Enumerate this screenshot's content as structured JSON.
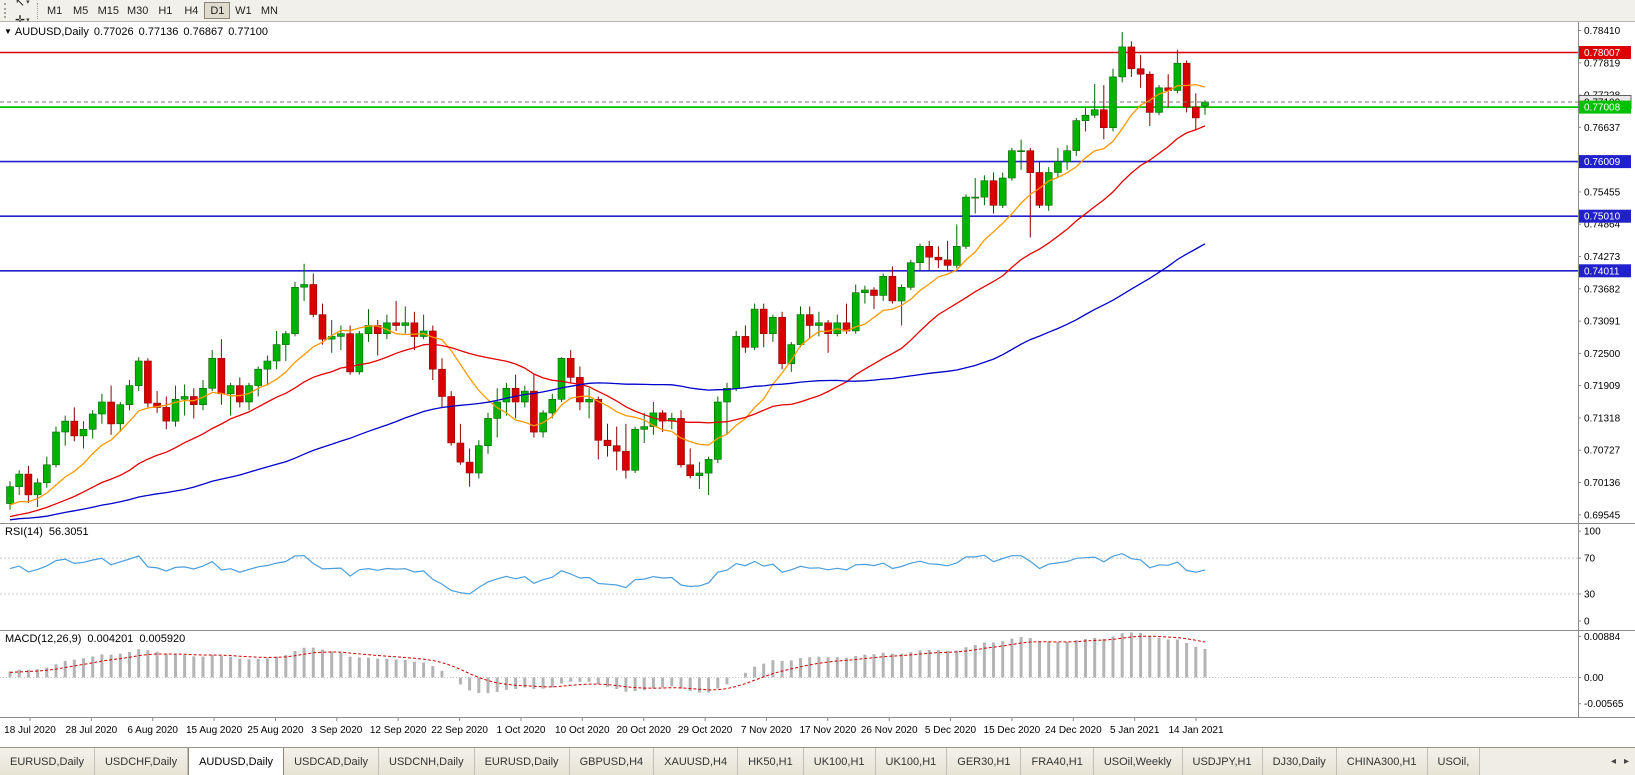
{
  "toolbar": {
    "tools": [
      {
        "name": "cursor-tool",
        "glyph": "↖"
      },
      {
        "name": "crosshair-tool",
        "glyph": "✛"
      }
    ],
    "caret_glyph": "▾",
    "timeframes": [
      "M1",
      "M5",
      "M15",
      "M30",
      "H1",
      "H4",
      "D1",
      "W1",
      "MN"
    ],
    "selected_timeframe": "D1"
  },
  "chart": {
    "symbol": "AUDUSD,Daily",
    "menu_icon": "▼",
    "open": "0.77026",
    "high": "0.77136",
    "low": "0.76867",
    "close": "0.77100"
  },
  "price_axis": {
    "ticks": [
      "0.78410",
      "0.77819",
      "0.77228",
      "0.76637",
      "0.76046",
      "0.75455",
      "0.74864",
      "0.74273",
      "0.73682",
      "0.73091",
      "0.72500",
      "0.71909",
      "0.71318",
      "0.70727",
      "0.70136",
      "0.69545"
    ],
    "current_price": {
      "value": "0.77100",
      "line_color": "#777777",
      "box_bg": "#e8e8e8",
      "box_border": "#606060",
      "text_color": "#000000"
    },
    "level_lines": [
      {
        "value": "0.78007",
        "color": "#dd0000",
        "width": 1.4
      },
      {
        "value": "0.77008",
        "color": "#00c000",
        "width": 1.8
      },
      {
        "value": "0.76009",
        "color": "#2020cc",
        "width": 1.6
      },
      {
        "value": "0.75010",
        "color": "#2020cc",
        "width": 1.6
      },
      {
        "value": "0.74011",
        "color": "#2020cc",
        "width": 1.6
      }
    ]
  },
  "time_axis": {
    "labels": [
      "18 Jul 2020",
      "28 Jul 2020",
      "6 Aug 2020",
      "15 Aug 2020",
      "25 Aug 2020",
      "3 Sep 2020",
      "12 Sep 2020",
      "22 Sep 2020",
      "1 Oct 2020",
      "10 Oct 2020",
      "20 Oct 2020",
      "29 Oct 2020",
      "7 Nov 2020",
      "17 Nov 2020",
      "26 Nov 2020",
      "5 Dec 2020",
      "15 Dec 2020",
      "24 Dec 2020",
      "5 Jan 2021",
      "14 Jan 2021"
    ]
  },
  "rsi": {
    "label": "RSI(14)",
    "value": "56.3051",
    "period": 14,
    "levels": [
      70,
      30
    ],
    "axis": [
      "100",
      "70",
      "30",
      "0"
    ],
    "view_min": -10,
    "view_max": 109
  },
  "macd": {
    "label": "MACD(12,26,9)",
    "value_main": "0.004201",
    "value_signal": "0.005920",
    "axis": [
      "0.00884",
      "0.00",
      "-0.00565"
    ],
    "view_min": -0.0085,
    "view_max": 0.0102
  },
  "tabs": {
    "items": [
      "EURUSD,Daily",
      "USDCHF,Daily",
      "AUDUSD,Daily",
      "USDCAD,Daily",
      "USDCNH,Daily",
      "EURUSD,Daily",
      "GBPUSD,H4",
      "XAUUSD,H4",
      "HK50,H1",
      "UK100,H1",
      "UK100,H1",
      "GER30,H1",
      "FRA40,H1",
      "USOil,Weekly",
      "USDJPY,H1",
      "DJ30,Daily",
      "CHINA300,H1",
      "USOil,"
    ],
    "active_index": 2,
    "scroll_left_glyph": "◂",
    "scroll_right_glyph": "▸"
  },
  "colors": {
    "background": "#ffffff",
    "bull": "#00b200",
    "bull_stroke": "#006600",
    "bear": "#d90000",
    "bear_stroke": "#8b0000",
    "rsi_line": "#4a9ede",
    "macd_hist": "#b4b4b4",
    "macd_signal": "#d00000",
    "axis_text": "#000000",
    "separator": "#8c8c8c"
  },
  "chart_data": {
    "type": "candlestick",
    "symbol": "AUDUSD",
    "timeframe": "Daily",
    "title": "AUDUSD,Daily 0.77026 0.77136 0.76867 0.77100",
    "x_range": [
      "18 Jul 2020",
      "19 Jan 2021"
    ],
    "price_view": [
      0.69395,
      0.78565
    ],
    "history_closes": [
      0.69,
      0.6875,
      0.691,
      0.6945,
      0.6965,
      0.693,
      0.6895,
      0.692,
      0.695,
      0.6975,
      0.7,
      0.6985,
      0.694,
      0.6905,
      0.693,
      0.6955,
      0.694,
      0.691,
      0.689,
      0.692,
      0.694,
      0.696,
      0.693,
      0.69,
      0.6925,
      0.6945,
      0.6965,
      0.6985,
      0.696,
      0.6935,
      0.695,
      0.697,
      0.699,
      0.696,
      0.694,
      0.696,
      0.698,
      0.6995,
      0.697,
      0.6955
    ],
    "candles": [
      [
        0.6975,
        0.7016,
        0.6964,
        0.7006
      ],
      [
        0.7006,
        0.7036,
        0.6991,
        0.7029
      ],
      [
        0.7029,
        0.7044,
        0.6976,
        0.6991
      ],
      [
        0.6991,
        0.7021,
        0.6969,
        0.7013
      ],
      [
        0.7013,
        0.7061,
        0.7004,
        0.7046
      ],
      [
        0.7046,
        0.7116,
        0.7041,
        0.7106
      ],
      [
        0.7106,
        0.7136,
        0.7081,
        0.7126
      ],
      [
        0.7126,
        0.7151,
        0.7089,
        0.7099
      ],
      [
        0.7099,
        0.7126,
        0.7076,
        0.7111
      ],
      [
        0.7111,
        0.7146,
        0.7094,
        0.7139
      ],
      [
        0.7139,
        0.7176,
        0.7121,
        0.7161
      ],
      [
        0.7161,
        0.7191,
        0.7101,
        0.7121
      ],
      [
        0.7121,
        0.7161,
        0.7106,
        0.7156
      ],
      [
        0.7156,
        0.7201,
        0.7146,
        0.7191
      ],
      [
        0.7191,
        0.7243,
        0.7181,
        0.7236
      ],
      [
        0.7236,
        0.7241,
        0.7151,
        0.7159
      ],
      [
        0.7159,
        0.7181,
        0.7141,
        0.7151
      ],
      [
        0.7151,
        0.7171,
        0.7111,
        0.7126
      ],
      [
        0.7126,
        0.7191,
        0.7116,
        0.7166
      ],
      [
        0.7166,
        0.7193,
        0.7136,
        0.7171
      ],
      [
        0.7171,
        0.7186,
        0.7131,
        0.7156
      ],
      [
        0.7156,
        0.7201,
        0.7146,
        0.7186
      ],
      [
        0.7186,
        0.7256,
        0.7181,
        0.7241
      ],
      [
        0.7241,
        0.7276,
        0.7156,
        0.7176
      ],
      [
        0.7176,
        0.7196,
        0.7136,
        0.7191
      ],
      [
        0.7191,
        0.7206,
        0.7151,
        0.7161
      ],
      [
        0.7161,
        0.7196,
        0.7146,
        0.7191
      ],
      [
        0.7191,
        0.7226,
        0.7171,
        0.7221
      ],
      [
        0.7221,
        0.7246,
        0.7191,
        0.7236
      ],
      [
        0.7236,
        0.7291,
        0.7221,
        0.7266
      ],
      [
        0.7266,
        0.7291,
        0.7236,
        0.7286
      ],
      [
        0.7286,
        0.7381,
        0.7281,
        0.7371
      ],
      [
        0.7371,
        0.7414,
        0.7346,
        0.7376
      ],
      [
        0.7376,
        0.7396,
        0.7316,
        0.7321
      ],
      [
        0.7321,
        0.7341,
        0.7266,
        0.7276
      ],
      [
        0.7276,
        0.7311,
        0.7251,
        0.7281
      ],
      [
        0.7281,
        0.7301,
        0.7256,
        0.7286
      ],
      [
        0.7286,
        0.7301,
        0.7211,
        0.7216
      ],
      [
        0.7216,
        0.7291,
        0.7211,
        0.7286
      ],
      [
        0.7286,
        0.7331,
        0.7271,
        0.7301
      ],
      [
        0.7301,
        0.7311,
        0.7246,
        0.7286
      ],
      [
        0.7286,
        0.7321,
        0.7276,
        0.7306
      ],
      [
        0.7306,
        0.7346,
        0.7291,
        0.7301
      ],
      [
        0.7301,
        0.7336,
        0.7286,
        0.7306
      ],
      [
        0.7306,
        0.7326,
        0.7256,
        0.7281
      ],
      [
        0.7281,
        0.7321,
        0.7276,
        0.7291
      ],
      [
        0.7291,
        0.7301,
        0.7201,
        0.7221
      ],
      [
        0.7221,
        0.7241,
        0.7151,
        0.7171
      ],
      [
        0.7171,
        0.7181,
        0.7081,
        0.7086
      ],
      [
        0.7086,
        0.7121,
        0.7046,
        0.7051
      ],
      [
        0.7051,
        0.7076,
        0.7006,
        0.7031
      ],
      [
        0.7031,
        0.7091,
        0.7021,
        0.7081
      ],
      [
        0.7081,
        0.7141,
        0.7066,
        0.7131
      ],
      [
        0.7131,
        0.7186,
        0.7096,
        0.7161
      ],
      [
        0.7161,
        0.7196,
        0.7136,
        0.7186
      ],
      [
        0.7186,
        0.7211,
        0.7131,
        0.7161
      ],
      [
        0.7161,
        0.7191,
        0.7151,
        0.7181
      ],
      [
        0.7181,
        0.7211,
        0.7096,
        0.7106
      ],
      [
        0.7106,
        0.7146,
        0.7096,
        0.7141
      ],
      [
        0.7141,
        0.7176,
        0.7131,
        0.7166
      ],
      [
        0.7166,
        0.7243,
        0.7161,
        0.7241
      ],
      [
        0.7241,
        0.7256,
        0.7196,
        0.7206
      ],
      [
        0.7206,
        0.7226,
        0.7146,
        0.7161
      ],
      [
        0.7161,
        0.7186,
        0.7131,
        0.7166
      ],
      [
        0.7166,
        0.7171,
        0.7056,
        0.7091
      ],
      [
        0.7091,
        0.7121,
        0.7061,
        0.7081
      ],
      [
        0.7081,
        0.7116,
        0.7036,
        0.7071
      ],
      [
        0.7071,
        0.7121,
        0.7021,
        0.7036
      ],
      [
        0.7036,
        0.7116,
        0.7031,
        0.7111
      ],
      [
        0.7111,
        0.7141,
        0.7086,
        0.7116
      ],
      [
        0.7116,
        0.7161,
        0.7101,
        0.7141
      ],
      [
        0.7141,
        0.7146,
        0.7106,
        0.7126
      ],
      [
        0.7126,
        0.7141,
        0.7111,
        0.7131
      ],
      [
        0.7131,
        0.7146,
        0.7041,
        0.7046
      ],
      [
        0.7046,
        0.7076,
        0.7021,
        0.7026
      ],
      [
        0.7026,
        0.7051,
        0.7002,
        0.7031
      ],
      [
        0.7031,
        0.7061,
        0.6991,
        0.7056
      ],
      [
        0.7056,
        0.7171,
        0.7049,
        0.7161
      ],
      [
        0.7161,
        0.7196,
        0.7101,
        0.7186
      ],
      [
        0.7186,
        0.7291,
        0.7181,
        0.7281
      ],
      [
        0.7281,
        0.7301,
        0.7251,
        0.7261
      ],
      [
        0.7261,
        0.7341,
        0.7256,
        0.7331
      ],
      [
        0.7331,
        0.7341,
        0.7261,
        0.7286
      ],
      [
        0.7286,
        0.7321,
        0.7271,
        0.7316
      ],
      [
        0.7316,
        0.7326,
        0.7221,
        0.7231
      ],
      [
        0.7231,
        0.7271,
        0.7216,
        0.7266
      ],
      [
        0.7266,
        0.7336,
        0.7261,
        0.7321
      ],
      [
        0.7321,
        0.7336,
        0.7276,
        0.7301
      ],
      [
        0.7301,
        0.7326,
        0.7281,
        0.7306
      ],
      [
        0.7306,
        0.7311,
        0.7251,
        0.7286
      ],
      [
        0.7286,
        0.7321,
        0.7281,
        0.7306
      ],
      [
        0.7306,
        0.7341,
        0.7286,
        0.7291
      ],
      [
        0.7291,
        0.7376,
        0.7286,
        0.7361
      ],
      [
        0.7361,
        0.7374,
        0.7341,
        0.7366
      ],
      [
        0.7366,
        0.7371,
        0.7331,
        0.7356
      ],
      [
        0.7356,
        0.7396,
        0.7346,
        0.7391
      ],
      [
        0.7391,
        0.7409,
        0.7341,
        0.7346
      ],
      [
        0.7346,
        0.7376,
        0.7301,
        0.7371
      ],
      [
        0.7371,
        0.7421,
        0.7366,
        0.7416
      ],
      [
        0.7416,
        0.7451,
        0.7401,
        0.7446
      ],
      [
        0.7446,
        0.7456,
        0.7401,
        0.7426
      ],
      [
        0.7426,
        0.7446,
        0.7406,
        0.7421
      ],
      [
        0.7421,
        0.7456,
        0.7401,
        0.7411
      ],
      [
        0.7411,
        0.7486,
        0.7406,
        0.7446
      ],
      [
        0.7446,
        0.7541,
        0.7441,
        0.7536
      ],
      [
        0.7536,
        0.7571,
        0.7506,
        0.7536
      ],
      [
        0.7536,
        0.7576,
        0.7521,
        0.7566
      ],
      [
        0.7566,
        0.7581,
        0.7506,
        0.7521
      ],
      [
        0.7521,
        0.7581,
        0.7516,
        0.7571
      ],
      [
        0.7571,
        0.7626,
        0.7566,
        0.7621
      ],
      [
        0.7621,
        0.7641,
        0.7586,
        0.7621
      ],
      [
        0.7621,
        0.7626,
        0.7462,
        0.7581
      ],
      [
        0.7581,
        0.7601,
        0.7516,
        0.7521
      ],
      [
        0.7521,
        0.7591,
        0.7511,
        0.7581
      ],
      [
        0.7581,
        0.7626,
        0.7571,
        0.7601
      ],
      [
        0.7601,
        0.7631,
        0.7586,
        0.7621
      ],
      [
        0.7621,
        0.7681,
        0.7611,
        0.7676
      ],
      [
        0.7676,
        0.7701,
        0.7656,
        0.7686
      ],
      [
        0.7686,
        0.7743,
        0.7681,
        0.7696
      ],
      [
        0.7696,
        0.7741,
        0.7642,
        0.7663
      ],
      [
        0.7663,
        0.7771,
        0.7656,
        0.7756
      ],
      [
        0.7756,
        0.7838,
        0.7746,
        0.7811
      ],
      [
        0.7811,
        0.7821,
        0.7756,
        0.7771
      ],
      [
        0.7771,
        0.7796,
        0.7736,
        0.7761
      ],
      [
        0.7761,
        0.7766,
        0.7666,
        0.7691
      ],
      [
        0.7691,
        0.7741,
        0.7686,
        0.7736
      ],
      [
        0.7736,
        0.7761,
        0.7701,
        0.7731
      ],
      [
        0.7731,
        0.7806,
        0.7726,
        0.7781
      ],
      [
        0.7781,
        0.7786,
        0.7691,
        0.7701
      ],
      [
        0.7701,
        0.7726,
        0.7659,
        0.7681
      ],
      [
        0.77026,
        0.77136,
        0.76867,
        0.771
      ]
    ],
    "overlays": [
      {
        "name": "ma-fast",
        "period": 10,
        "color": "#ff9900"
      },
      {
        "name": "ma-mid",
        "period": 25,
        "color": "#e60000"
      },
      {
        "name": "ma-slow",
        "period": 60,
        "color": "#0000cc"
      }
    ]
  }
}
